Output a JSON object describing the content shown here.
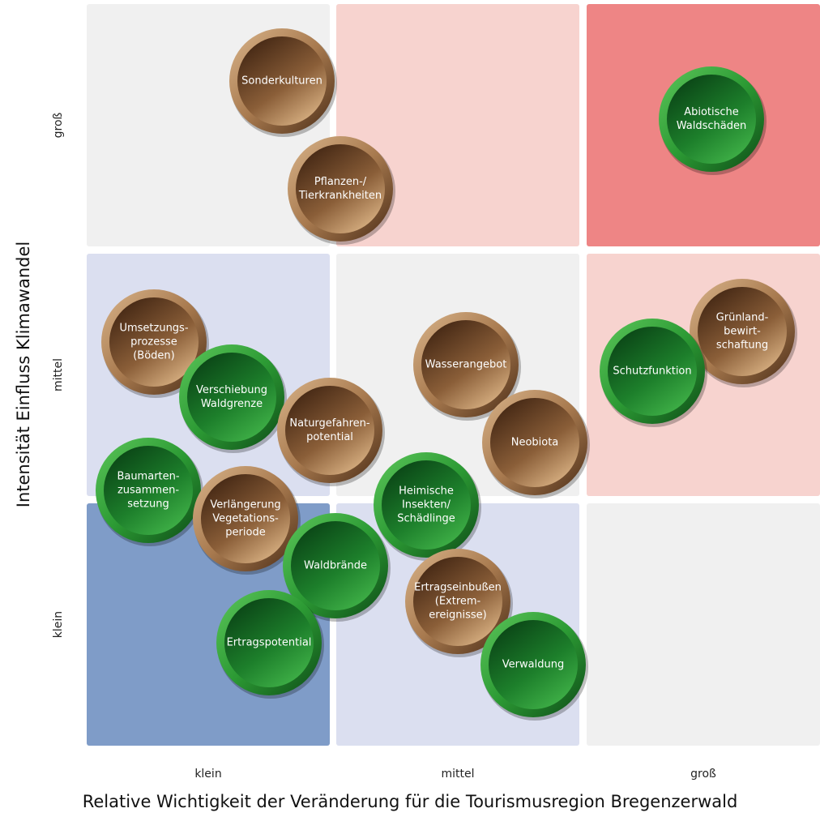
{
  "y_axis_title": "Intensität Einfluss Klimawandel",
  "x_axis_title": "Relative Wichtigkeit der Veränderung für die Tourismusregion Bregenzerwald",
  "row_labels": [
    "groß",
    "mittel",
    "klein"
  ],
  "column_labels": [
    "klein",
    "mittel",
    "groß"
  ],
  "cell_colors": [
    [
      "#f0f0f0",
      "#f7d3cf",
      "#ee8585"
    ],
    [
      "#dbdff0",
      "#f0f0f0",
      "#f7d3cf"
    ],
    [
      "#7f9cc8",
      "#dbdff0",
      "#f0f0f0"
    ]
  ],
  "nodes": [
    {
      "lines": [
        "Sonderkulturen"
      ],
      "color": "brown"
    },
    {
      "lines": [
        "Pflanzen-/",
        "Tierkrankheiten"
      ],
      "color": "brown"
    },
    {
      "lines": [
        "Abiotische",
        "Waldschäden"
      ],
      "color": "green"
    },
    {
      "lines": [
        "Umsetzungs-",
        "prozesse",
        "(Böden)"
      ],
      "color": "brown"
    },
    {
      "lines": [
        "Wasserangebot"
      ],
      "color": "brown"
    },
    {
      "lines": [
        "Grünland-",
        "bewirt-",
        "schaftung"
      ],
      "color": "brown"
    },
    {
      "lines": [
        "Schutzfunktion"
      ],
      "color": "green"
    },
    {
      "lines": [
        "Verschiebung",
        "Waldgrenze"
      ],
      "color": "green"
    },
    {
      "lines": [
        "Naturgefahren-",
        "potential"
      ],
      "color": "brown"
    },
    {
      "lines": [
        "Neobiota"
      ],
      "color": "brown"
    },
    {
      "lines": [
        "Baumarten-",
        "zusammen-",
        "setzung"
      ],
      "color": "green"
    },
    {
      "lines": [
        "Verlängerung",
        "Vegetations-",
        "periode"
      ],
      "color": "brown"
    },
    {
      "lines": [
        "Heimische",
        "Insekten/",
        "Schädlinge"
      ],
      "color": "green"
    },
    {
      "lines": [
        "Waldbrände"
      ],
      "color": "green"
    },
    {
      "lines": [
        "Ertragseinbußen",
        "(Extrem-",
        "ereignisse)"
      ],
      "color": "brown"
    },
    {
      "lines": [
        "Ertragspotential"
      ],
      "color": "green"
    },
    {
      "lines": [
        "Verwaldung"
      ],
      "color": "green"
    }
  ]
}
